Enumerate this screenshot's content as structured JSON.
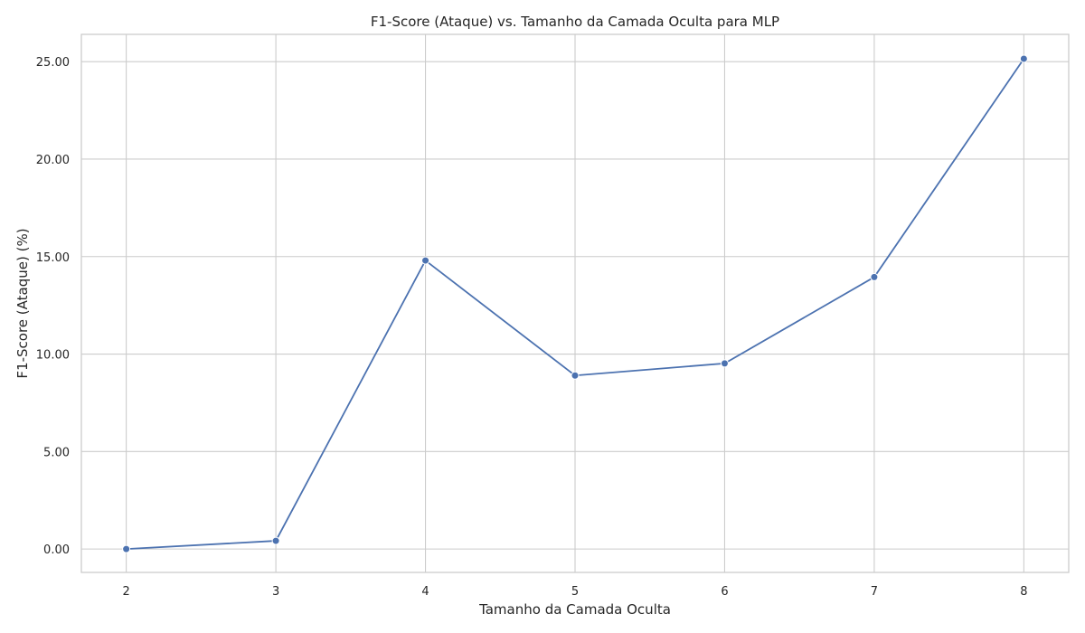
{
  "chart_data": {
    "type": "line",
    "title": "F1-Score (Ataque) vs. Tamanho da Camada Oculta para MLP",
    "xlabel": "Tamanho da Camada Oculta",
    "ylabel": "F1-Score (Ataque) (%)",
    "x": [
      2,
      3,
      4,
      5,
      6,
      7,
      8
    ],
    "x_tick_labels": [
      "2",
      "3",
      "4",
      "5",
      "6",
      "7",
      "8"
    ],
    "y_tick_labels": [
      "0.00",
      "5.00",
      "10.00",
      "15.00",
      "20.00",
      "25.00"
    ],
    "y_ticks": [
      0,
      5,
      10,
      15,
      20,
      25
    ],
    "xlim": [
      1.7,
      8.3
    ],
    "ylim": [
      -1.2,
      26.4
    ],
    "grid": true,
    "series": [
      {
        "values": [
          0.0,
          0.42,
          14.8,
          8.9,
          9.52,
          13.95,
          25.15
        ],
        "color": "#4c72b0",
        "marker": "circle"
      }
    ]
  }
}
